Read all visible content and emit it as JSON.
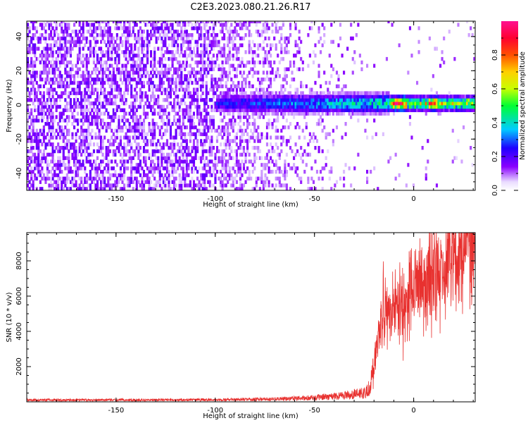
{
  "title": "C2E3.2023.080.21.26.R17",
  "chart_data": [
    {
      "type": "heatmap",
      "xlabel": "Height of straight line (km)",
      "ylabel": "Frequency (Hz)",
      "xlim": [
        -195,
        31
      ],
      "ylim": [
        -50,
        49
      ],
      "x_ticks": [
        -150,
        -100,
        -50,
        0
      ],
      "y_ticks": [
        -40,
        -20,
        0,
        20,
        40
      ],
      "colorbar": {
        "label": "Normalized spectral amplitude",
        "range": [
          0,
          1
        ],
        "ticks": [
          0.0,
          0.2,
          0.4,
          0.6,
          0.8
        ],
        "colormap": "white-purple-blue-cyan-green-yellow-orange-red-magenta"
      },
      "description_of_field": {
        "noise_region_x": [
          -195,
          -100
        ],
        "noise_level": 0.25,
        "signal_band_center_hz": 0,
        "signal_onset_km": -100,
        "strong_signal_onset_km": -13,
        "peak_regions_km": [
          -10,
          10
        ]
      }
    },
    {
      "type": "line",
      "xlabel": "Height of straight line (km)",
      "ylabel": "SNR (10 * v/v)",
      "xlim": [
        -195,
        31
      ],
      "ylim": [
        0,
        9600
      ],
      "x_ticks": [
        -150,
        -100,
        -50,
        0
      ],
      "y_ticks": [
        2000,
        4000,
        6000,
        8000
      ],
      "grid": false,
      "color": "#e8312f",
      "envelope": {
        "x": [
          -195,
          -150,
          -100,
          -70,
          -50,
          -35,
          -25,
          -22,
          -20,
          -18,
          -16,
          -14,
          -12,
          -10,
          -8,
          -6,
          -4,
          -2,
          0,
          2,
          4,
          6,
          8,
          10,
          12,
          14,
          16,
          18,
          20,
          22,
          24,
          26,
          28,
          30
        ],
        "y": [
          120,
          120,
          130,
          180,
          260,
          420,
          550,
          900,
          2000,
          3600,
          5000,
          4800,
          4400,
          5300,
          5900,
          5400,
          5600,
          6700,
          6300,
          6000,
          6500,
          6700,
          6900,
          7100,
          7300,
          7200,
          7500,
          8000,
          8200,
          8400,
          8600,
          8800,
          8900,
          8950
        ]
      }
    }
  ]
}
